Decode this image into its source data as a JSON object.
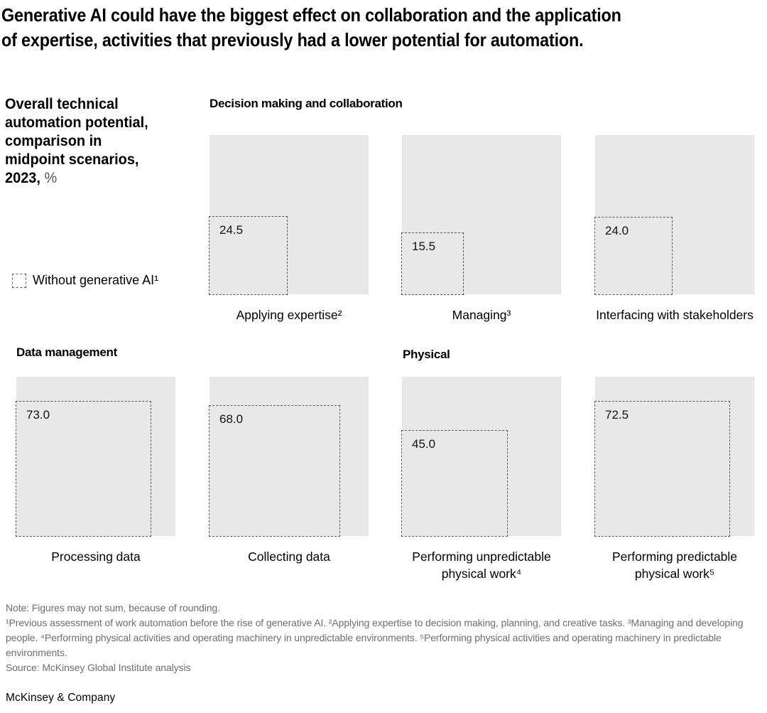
{
  "title_lines": [
    "Generative AI could have the biggest effect on collaboration and the application",
    "of expertise, activities that previously had a lower potential for automation."
  ],
  "left_panel": {
    "heading_lines": [
      "Overall technical",
      "automation potential,",
      "comparison in",
      "midpoint scenarios,",
      "2023,"
    ],
    "heading_unit": "%"
  },
  "chart_data": {
    "type": "square-area-comparison",
    "title": "Overall technical automation potential, comparison in midpoint scenarios, 2023, %",
    "unit": "%",
    "full_square_value": 100,
    "dashed_series": "Without generative AI¹",
    "note": "Gray square represents full (100%) area; dashed square area is proportional to the value, anchored at the bottom-left corner",
    "groups": [
      {
        "name": "Decision making and collaboration",
        "items": [
          {
            "label": "Applying expertise²",
            "value": 24.5,
            "value_label": "24.5"
          },
          {
            "label": "Managing³",
            "value": 15.5,
            "value_label": "15.5"
          },
          {
            "label": "Interfacing with stakeholders",
            "value": 24.0,
            "value_label": "24.0"
          }
        ]
      },
      {
        "name": "Data management",
        "items": [
          {
            "label": "Processing data",
            "value": 73.0,
            "value_label": "73.0"
          },
          {
            "label": "Collecting data",
            "value": 68.0,
            "value_label": "68.0"
          }
        ]
      },
      {
        "name": "Physical",
        "items": [
          {
            "label": "Performing unpredictable physical work⁴",
            "label_lines": [
              "Performing unpredictable",
              "physical work⁴"
            ],
            "value": 45.0,
            "value_label": "45.0"
          },
          {
            "label": "Performing predictable physical work⁵",
            "label_lines": [
              "Performing predictable",
              "physical work⁵"
            ],
            "value": 72.5,
            "value_label": "72.5"
          }
        ]
      }
    ]
  },
  "footnotes": {
    "note": "Note: Figures may not sum, because of rounding.",
    "details": "¹Previous assessment of work automation before the rise of generative AI. ²Applying expertise to decision making, planning, and creative tasks. ³Managing and developing people. ⁴Performing physical activities and operating machinery in unpredictable environments. ⁵Performing physical activities and operating machinery in predictable environments.",
    "source": "Source: McKinsey Global Institute analysis"
  },
  "footer": {
    "wordmark": "McKinsey & Company"
  },
  "colors": {
    "square_fill": "#e8e8e8",
    "dashed_stroke": "#595959",
    "footnote_text": "#6e6e6e"
  }
}
